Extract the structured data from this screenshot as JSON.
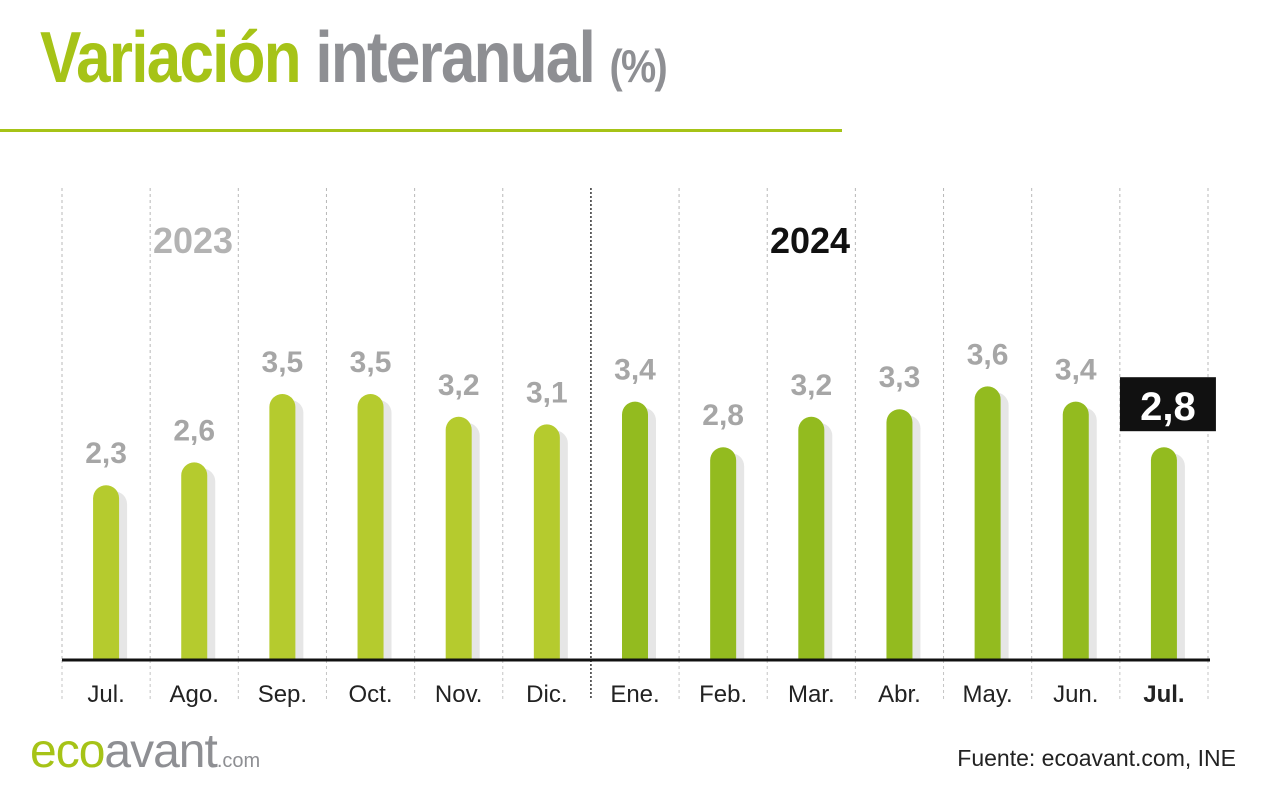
{
  "title": {
    "part1": "Variación",
    "part2": "interanual",
    "part3": "(%)"
  },
  "logo": {
    "eco": "eco",
    "avant": "avant",
    "com": ".com"
  },
  "source": "Fuente: ecoavant.com, INE",
  "colors": {
    "accent": "#a6c317",
    "bar_2023": "#b5cb2e",
    "bar_2024": "#93bb1f",
    "gray_text": "#a6a6a6",
    "dark": "#111111",
    "shadow": "#e6e6e6"
  },
  "chart_data": {
    "type": "bar",
    "categories": [
      "Jul.",
      "Ago.",
      "Sep.",
      "Oct.",
      "Nov.",
      "Dic.",
      "Ene.",
      "Feb.",
      "Mar.",
      "Abr.",
      "May.",
      "Jun.",
      "Jul."
    ],
    "values": [
      2.3,
      2.6,
      3.5,
      3.5,
      3.2,
      3.1,
      3.4,
      2.8,
      3.2,
      3.3,
      3.6,
      3.4,
      2.8
    ],
    "value_labels": [
      "2,3",
      "2,6",
      "3,5",
      "3,5",
      "3,2",
      "3,1",
      "3,4",
      "2,8",
      "3,2",
      "3,3",
      "3,6",
      "3,4",
      "2,8"
    ],
    "year_groups": [
      {
        "label": "2023",
        "start": 0,
        "end": 5
      },
      {
        "label": "2024",
        "start": 6,
        "end": 12
      }
    ],
    "highlight_index": 12,
    "ylim": [
      0,
      3.6
    ],
    "grid": true
  }
}
